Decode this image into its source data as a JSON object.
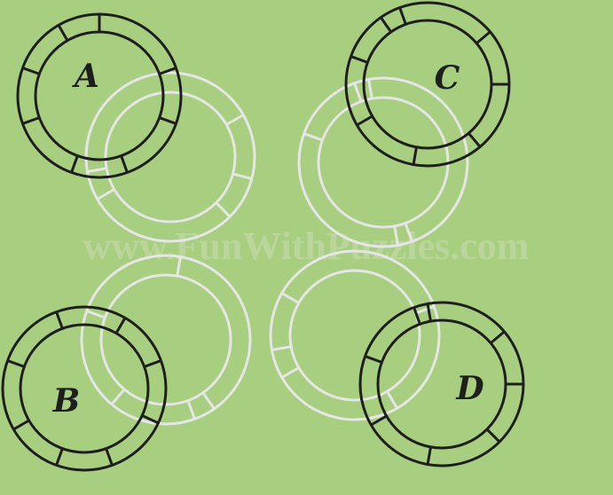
{
  "puzzle": {
    "watermark": "www.FunWithPuzzles.com",
    "colors": {
      "background": "#a8cf80",
      "dark_ring": "#1e1e1e",
      "light_ring": "#e6e6e6"
    },
    "rings": [
      {
        "id": "A",
        "label": "A"
      },
      {
        "id": "B",
        "label": "B"
      },
      {
        "id": "C",
        "label": "C"
      },
      {
        "id": "D",
        "label": "D"
      }
    ]
  }
}
